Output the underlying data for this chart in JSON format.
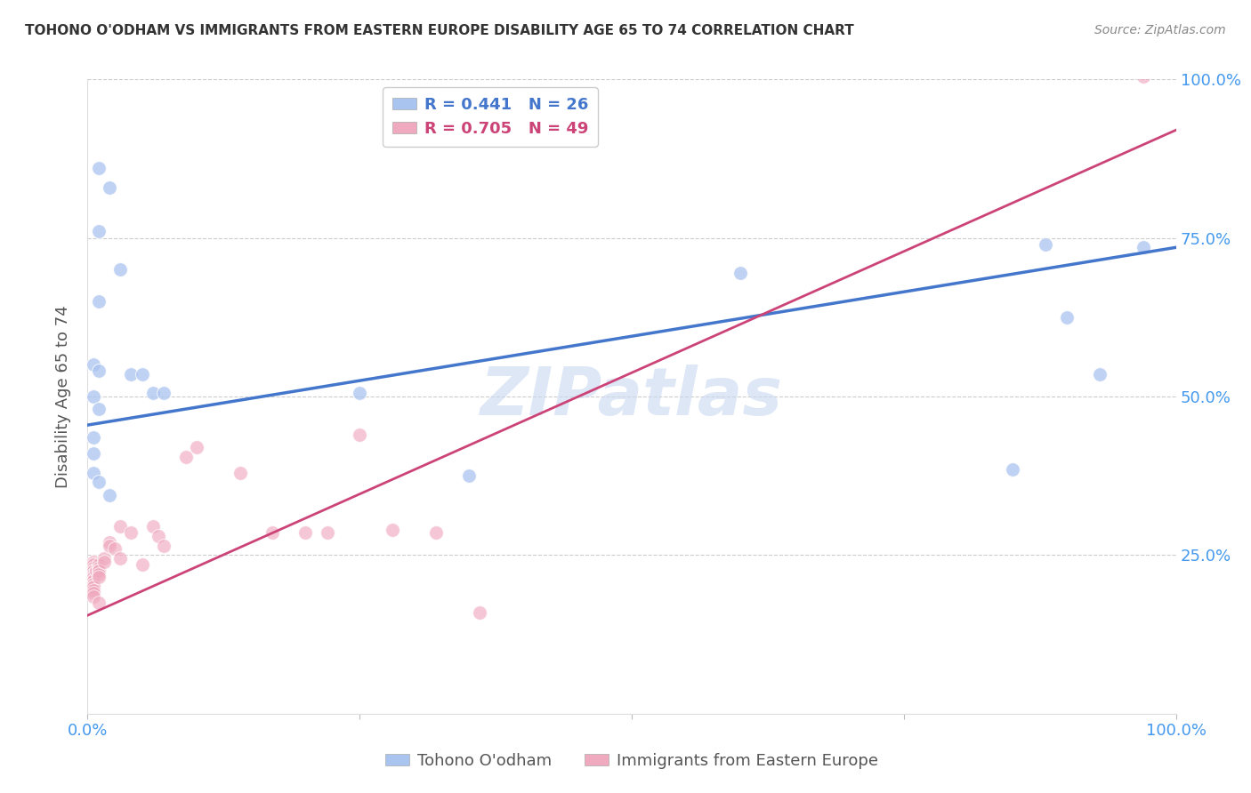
{
  "title": "TOHONO O'ODHAM VS IMMIGRANTS FROM EASTERN EUROPE DISABILITY AGE 65 TO 74 CORRELATION CHART",
  "source": "Source: ZipAtlas.com",
  "ylabel": "Disability Age 65 to 74",
  "blue_R": 0.441,
  "blue_N": 26,
  "pink_R": 0.705,
  "pink_N": 49,
  "legend_label_blue": "Tohono O'odham",
  "legend_label_pink": "Immigrants from Eastern Europe",
  "watermark": "ZIPatlas",
  "blue_color": "#aac4f0",
  "pink_color": "#f0aac0",
  "blue_line_color": "#4477cc",
  "pink_line_color": "#cc4477",
  "axis_label_color": "#4499ee",
  "title_color": "#333333",
  "grid_color": "#cccccc",
  "xlim": [
    0,
    1.0
  ],
  "ylim": [
    0,
    1.0
  ],
  "xticks": [
    0,
    0.25,
    0.5,
    0.75,
    1.0
  ],
  "yticks": [
    0,
    0.25,
    0.5,
    0.75,
    1.0
  ],
  "xticklabels": [
    "0.0%",
    "",
    "",
    "",
    "100.0%"
  ],
  "yticklabels_right": [
    "",
    "25.0%",
    "50.0%",
    "75.0%",
    "100.0%"
  ],
  "blue_scatter_x": [
    0.01,
    0.02,
    0.03,
    0.01,
    0.01,
    0.005,
    0.005,
    0.01,
    0.01,
    0.005,
    0.005,
    0.005,
    0.01,
    0.02,
    0.04,
    0.05,
    0.06,
    0.07,
    0.25,
    0.85,
    0.88,
    0.9,
    0.93,
    0.97,
    0.6,
    0.35
  ],
  "blue_scatter_y": [
    0.86,
    0.83,
    0.7,
    0.76,
    0.65,
    0.55,
    0.5,
    0.48,
    0.54,
    0.435,
    0.41,
    0.38,
    0.365,
    0.345,
    0.535,
    0.535,
    0.505,
    0.505,
    0.505,
    0.385,
    0.74,
    0.625,
    0.535,
    0.735,
    0.695,
    0.375
  ],
  "pink_scatter_x": [
    0.005,
    0.005,
    0.005,
    0.005,
    0.005,
    0.005,
    0.005,
    0.005,
    0.005,
    0.005,
    0.005,
    0.005,
    0.005,
    0.005,
    0.005,
    0.005,
    0.005,
    0.005,
    0.008,
    0.01,
    0.01,
    0.01,
    0.01,
    0.01,
    0.01,
    0.01,
    0.015,
    0.015,
    0.02,
    0.02,
    0.025,
    0.03,
    0.03,
    0.04,
    0.05,
    0.06,
    0.065,
    0.07,
    0.09,
    0.1,
    0.14,
    0.17,
    0.2,
    0.22,
    0.25,
    0.28,
    0.32,
    0.36,
    0.97
  ],
  "pink_scatter_y": [
    0.24,
    0.235,
    0.23,
    0.225,
    0.225,
    0.22,
    0.22,
    0.215,
    0.215,
    0.21,
    0.21,
    0.205,
    0.205,
    0.2,
    0.2,
    0.195,
    0.19,
    0.185,
    0.225,
    0.235,
    0.23,
    0.225,
    0.225,
    0.22,
    0.215,
    0.175,
    0.245,
    0.24,
    0.27,
    0.265,
    0.26,
    0.245,
    0.295,
    0.285,
    0.235,
    0.295,
    0.28,
    0.265,
    0.405,
    0.42,
    0.38,
    0.285,
    0.285,
    0.285,
    0.44,
    0.29,
    0.285,
    0.16,
    1.005
  ],
  "blue_line_x0": 0.0,
  "blue_line_y0": 0.455,
  "blue_line_x1": 1.0,
  "blue_line_y1": 0.735,
  "pink_line_x0": 0.0,
  "pink_line_y0": 0.155,
  "pink_line_x1": 1.0,
  "pink_line_y1": 0.92
}
